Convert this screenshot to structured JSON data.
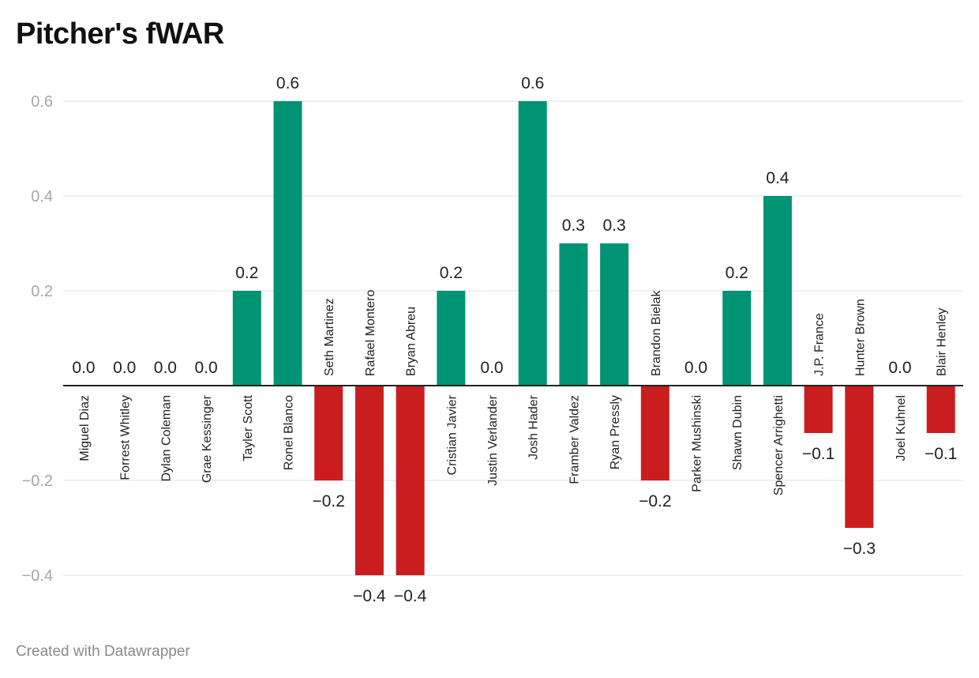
{
  "header": {
    "title": "Pitcher's fWAR"
  },
  "footer": {
    "credit": "Created with Datawrapper"
  },
  "colors": {
    "positive": "#009475",
    "negative": "#c91d1f",
    "grid": "#e0e0e0",
    "baseline": "#222222",
    "tick_text": "#a6a6a6"
  },
  "chart_data": {
    "type": "bar",
    "title": "Pitcher's fWAR",
    "xlabel": "",
    "ylabel": "",
    "ylim": [
      -0.4,
      0.6
    ],
    "yticks": [
      0.6,
      0.4,
      0.2,
      -0.2,
      -0.4
    ],
    "ytick_labels": [
      "0.6",
      "0.4",
      "0.2",
      "−0.2",
      "−0.4"
    ],
    "grid": true,
    "categories": [
      "Miguel Diaz",
      "Forrest Whitley",
      "Dylan Coleman",
      "Grae Kessinger",
      "Tayler Scott",
      "Ronel Blanco",
      "Seth Martinez",
      "Rafael Montero",
      "Bryan Abreu",
      "Cristian Javier",
      "Justin Verlander",
      "Josh Hader",
      "Framber Valdez",
      "Ryan Pressly",
      "Brandon Bielak",
      "Parker Mushinski",
      "Shawn Dubin",
      "Spencer Arrighetti",
      "J.P. France",
      "Hunter Brown",
      "Joel Kuhnel",
      "Blair Henley"
    ],
    "values": [
      0,
      0,
      0,
      0,
      0.2,
      0.6,
      -0.2,
      -0.4,
      -0.4,
      0.2,
      0,
      0.6,
      0.3,
      0.3,
      -0.2,
      0,
      0.2,
      0.4,
      -0.1,
      -0.3,
      0,
      -0.1
    ],
    "value_labels": [
      "0.0",
      "0.0",
      "0.0",
      "0.0",
      "0.2",
      "0.6",
      "−0.2",
      "−0.4",
      "−0.4",
      "0.2",
      "0.0",
      "0.6",
      "0.3",
      "0.3",
      "−0.2",
      "0.0",
      "0.2",
      "0.4",
      "−0.1",
      "−0.3",
      "0.0",
      "−0.1"
    ]
  }
}
